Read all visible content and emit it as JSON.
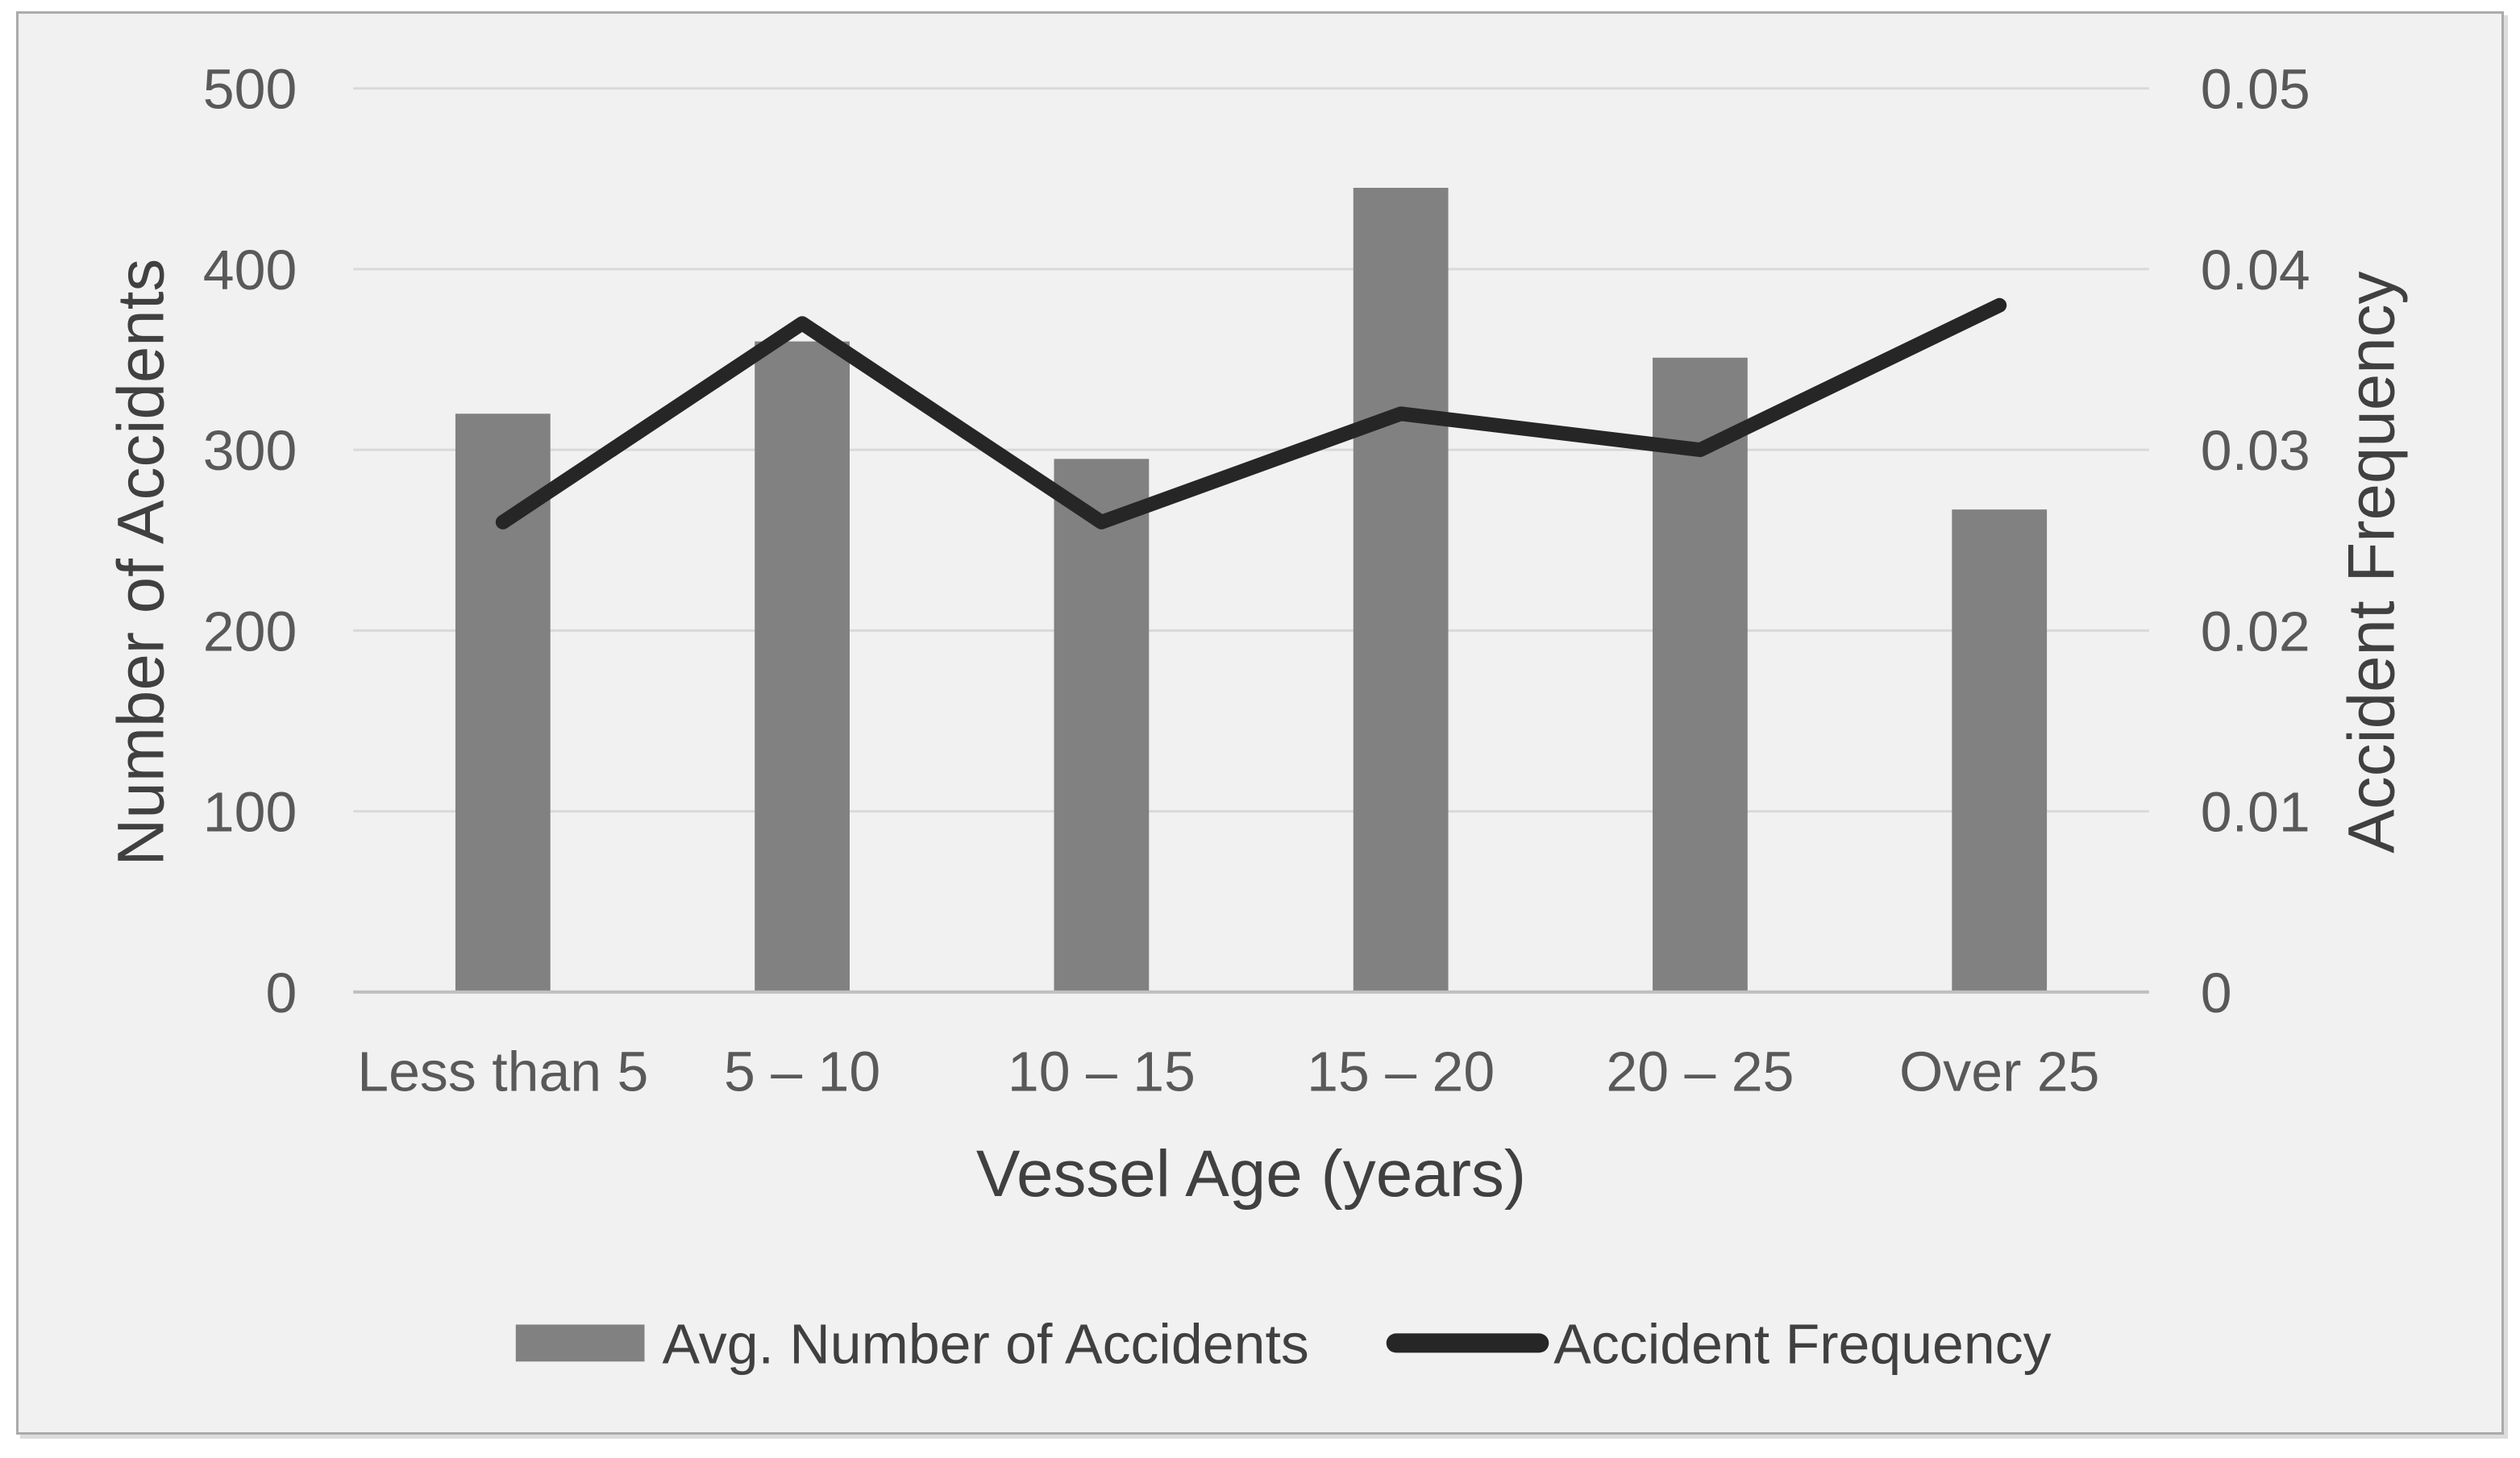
{
  "style": {
    "page_background": "#ffffff",
    "chart_background": "#f1f1f1",
    "frame_border_color": "#ababab",
    "frame_shadow_color": "#dcdcdc",
    "bar_color": "#818181",
    "line_color": "#262626",
    "gridline_color": "#d9d9d9",
    "axis_line_color": "#bfbfbf",
    "tick_text_color": "#595959",
    "title_text_color": "#404040",
    "legend_text_color": "#404040"
  },
  "chart_data": {
    "type": "combo-bar-line",
    "title": "",
    "categories": [
      "Less than 5",
      "5 – 10",
      "10 – 15",
      "15 – 20",
      "20 – 25",
      "Over 25"
    ],
    "series": [
      {
        "name": "Avg. Number of Accidents",
        "type": "bar",
        "axis": "left",
        "values": [
          320,
          360,
          295,
          445,
          351,
          267
        ]
      },
      {
        "name": "Accident Frequency",
        "type": "line",
        "axis": "right",
        "values": [
          0.026,
          0.037,
          0.026,
          0.032,
          0.03,
          0.038
        ]
      }
    ],
    "xlabel": "Vessel Age (years)",
    "left_axis": {
      "label": "Number of Accidents",
      "min": 0,
      "max": 500,
      "ticks": [
        0,
        100,
        200,
        300,
        400,
        500
      ],
      "tick_labels": [
        "0",
        "100",
        "200",
        "300",
        "400",
        "500"
      ]
    },
    "right_axis": {
      "label": "Accident Frequency",
      "min": 0,
      "max": 0.05,
      "ticks": [
        0,
        0.01,
        0.02,
        0.03,
        0.04,
        0.05
      ],
      "tick_labels": [
        "0",
        "0.01",
        "0.02",
        "0.03",
        "0.04",
        "0.05"
      ]
    },
    "grid": true,
    "legend_position": "bottom"
  }
}
